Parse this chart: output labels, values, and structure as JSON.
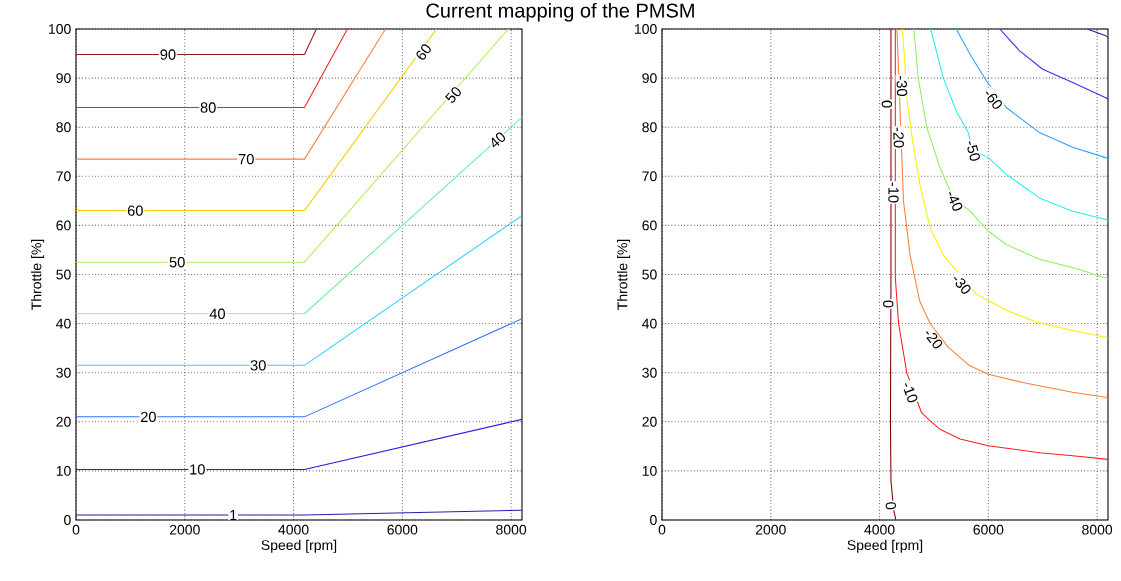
{
  "chart_data": [
    {
      "type": "line",
      "title": "Current mapping of the PMSM",
      "xlabel": "Speed [rpm]",
      "ylabel": "Throttle [%]",
      "xlim": [
        0,
        8200
      ],
      "ylim": [
        0,
        100
      ],
      "xticks": [
        0,
        2000,
        4000,
        6000,
        8000
      ],
      "yticks": [
        0,
        10,
        20,
        30,
        40,
        50,
        60,
        70,
        80,
        90,
        100
      ],
      "grid": true,
      "series": [
        {
          "color": "#2020b0",
          "x": [
            0,
            4200,
            8200
          ],
          "values": [
            1,
            1,
            2
          ]
        },
        {
          "color": "#2020e0",
          "x": [
            0,
            4200,
            8200
          ],
          "values": [
            10.3,
            10.3,
            20.5
          ]
        },
        {
          "color": "#3070ff",
          "x": [
            0,
            4200,
            8200
          ],
          "values": [
            21,
            21,
            41
          ]
        },
        {
          "color": "#30d0ff",
          "x": [
            0,
            4200,
            8200
          ],
          "values": [
            31.5,
            31.5,
            62
          ]
        },
        {
          "color": "#70f0a0",
          "x": [
            0,
            4200,
            8200
          ],
          "values": [
            42,
            42,
            82
          ]
        },
        {
          "color": "#b0f050",
          "x": [
            0,
            4200,
            7950
          ],
          "values": [
            52.5,
            52.5,
            100
          ]
        },
        {
          "color": "#ffcc00",
          "x": [
            0,
            4200,
            6630
          ],
          "values": [
            63,
            63,
            100
          ]
        },
        {
          "color": "#ff8040",
          "x": [
            0,
            4200,
            5690
          ],
          "values": [
            73.5,
            73.5,
            100
          ]
        },
        {
          "color": "#ff2020",
          "x": [
            0,
            4200,
            4990
          ],
          "values": [
            84,
            84,
            100
          ]
        },
        {
          "color": "#902020",
          "x": [
            0,
            4200,
            4420
          ],
          "values": [
            94.8,
            94.8,
            100
          ]
        }
      ],
      "annotations": [
        {
          "text": "90",
          "x": 1690,
          "y": 94.8
        },
        {
          "text": "80",
          "x": 2430,
          "y": 84
        },
        {
          "text": "70",
          "x": 3130,
          "y": 73.5
        },
        {
          "text": "60",
          "x": 1090,
          "y": 63
        },
        {
          "text": "60",
          "x": 6390,
          "y": 95.3
        },
        {
          "text": "50",
          "x": 1860,
          "y": 52.5
        },
        {
          "text": "50",
          "x": 6940,
          "y": 86.6
        },
        {
          "text": "40",
          "x": 2600,
          "y": 42
        },
        {
          "text": "40",
          "x": 7750,
          "y": 77.4
        },
        {
          "text": "30",
          "x": 3350,
          "y": 31.5
        },
        {
          "text": "20",
          "x": 1330,
          "y": 21
        },
        {
          "text": "10",
          "x": 2230,
          "y": 10.3
        },
        {
          "text": "1",
          "x": 2890,
          "y": 1
        }
      ]
    },
    {
      "type": "line",
      "xlabel": "Speed [rpm]",
      "ylabel": "Throttle [%]",
      "xlim": [
        0,
        8200
      ],
      "ylim": [
        0,
        100
      ],
      "xticks": [
        0,
        2000,
        4000,
        6000,
        8000
      ],
      "yticks": [
        0,
        10,
        20,
        30,
        40,
        50,
        60,
        70,
        80,
        90,
        100
      ],
      "grid": true,
      "series": [
        {
          "color": "#800000",
          "x": [
            4210,
            4210,
            4200,
            4210,
            4260,
            4300
          ],
          "values": [
            100,
            50,
            20,
            8,
            2,
            0
          ]
        },
        {
          "color": "#ff2020",
          "x": [
            4290,
            4290,
            4350,
            4500,
            4770,
            4930,
            5110,
            5480,
            6000,
            6940,
            7550,
            8160,
            8200
          ],
          "values": [
            100,
            49.3,
            40,
            30,
            21.9,
            20.2,
            18.5,
            16.5,
            15.1,
            13.7,
            13.1,
            12.4,
            12.2
          ]
        },
        {
          "color": "#ff8030",
          "x": [
            4320,
            4440,
            4560,
            4740,
            4930,
            5260,
            5660,
            6000,
            6630,
            7550,
            8160,
            8200
          ],
          "values": [
            100,
            65,
            54,
            44.5,
            40,
            35.2,
            31.4,
            29.7,
            28,
            26,
            25,
            24.5
          ]
        },
        {
          "color": "#ffee00",
          "x": [
            4420,
            4470,
            4500,
            4590,
            4740,
            4930,
            5170,
            5780,
            6000,
            6330,
            6880,
            7550,
            8160,
            8200
          ],
          "values": [
            100,
            92.2,
            86,
            78.6,
            68.4,
            59.5,
            54,
            46,
            44.7,
            42.7,
            40.3,
            38.6,
            37.2,
            37
          ]
        },
        {
          "color": "#90f060",
          "x": [
            4630,
            4710,
            4870,
            5110,
            5380,
            5630,
            6000,
            6330,
            6940,
            7550,
            8160,
            8200
          ],
          "values": [
            100,
            90.1,
            79.9,
            71.8,
            65,
            63.3,
            58.8,
            56.1,
            53.1,
            51.4,
            49.3,
            49
          ]
        },
        {
          "color": "#20f0f0",
          "x": [
            4940,
            5170,
            5410,
            5630,
            5720,
            6000,
            6330,
            6940,
            7550,
            8160,
            8200
          ],
          "values": [
            100,
            90.1,
            83.3,
            78.9,
            75.2,
            73.8,
            70.4,
            65.6,
            62.9,
            61.2,
            61
          ]
        },
        {
          "color": "#30a0ff",
          "x": [
            5410,
            5660,
            5960,
            6330,
            6940,
            7550,
            8160,
            8200
          ],
          "values": [
            100,
            94.9,
            89.5,
            84,
            78.9,
            75.9,
            73.8,
            73.5
          ]
        },
        {
          "color": "#3030f0",
          "x": [
            6210,
            6570,
            7000,
            7550,
            8160,
            8200
          ],
          "values": [
            100,
            95.6,
            91.8,
            89.1,
            86,
            85.7
          ]
        },
        {
          "color": "#2020a0",
          "x": [
            7820,
            8160,
            8200
          ],
          "values": [
            100,
            98.6,
            98.3
          ]
        }
      ],
      "annotations": [
        {
          "text": "0",
          "x": 4134,
          "y": 84.7
        },
        {
          "text": "0",
          "x": 4160,
          "y": 44
        },
        {
          "text": "0",
          "x": 4207,
          "y": 2.9
        },
        {
          "text": "-10",
          "x": 4256,
          "y": 66.7
        },
        {
          "text": "-10",
          "x": 4560,
          "y": 26
        },
        {
          "text": "-20",
          "x": 4350,
          "y": 77.9
        },
        {
          "text": "-20",
          "x": 4990,
          "y": 36.9
        },
        {
          "text": "-30",
          "x": 4410,
          "y": 88.4
        },
        {
          "text": "-30",
          "x": 5510,
          "y": 48
        },
        {
          "text": "-40",
          "x": 5380,
          "y": 65
        },
        {
          "text": "-50",
          "x": 5720,
          "y": 75.2
        },
        {
          "text": "-60",
          "x": 6090,
          "y": 85.7
        }
      ]
    }
  ]
}
